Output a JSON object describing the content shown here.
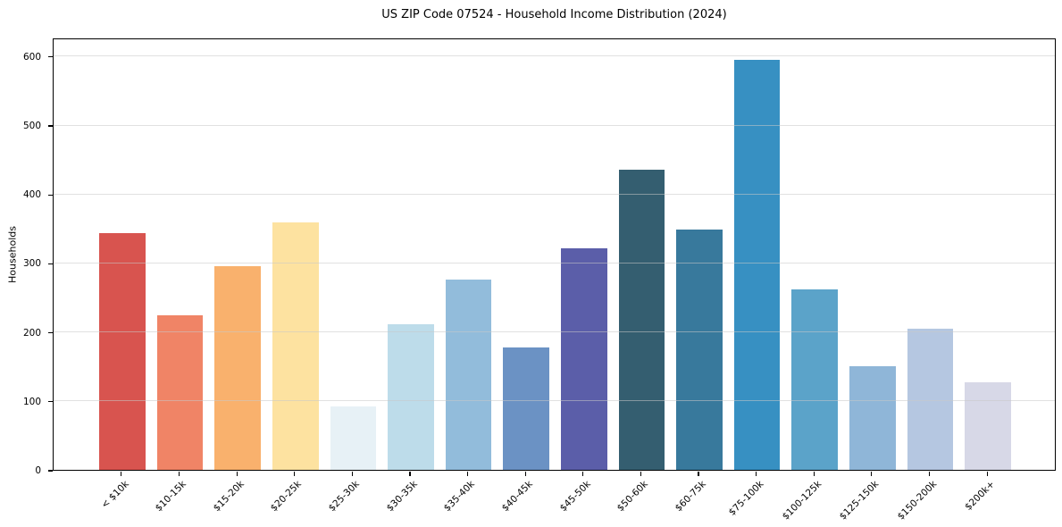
{
  "chart_data": {
    "type": "bar",
    "title": "US ZIP Code 07524 - Household Income Distribution (2024)",
    "xlabel": "",
    "ylabel": "Households",
    "categories": [
      "< $10k",
      "$10-15k",
      "$15-20k",
      "$20-25k",
      "$25-30k",
      "$30-35k",
      "$35-40k",
      "$40-45k",
      "$45-50k",
      "$50-60k",
      "$60-75k",
      "$75-100k",
      "$100-125k",
      "$125-150k",
      "$150-200k",
      "$200k+"
    ],
    "values": [
      343,
      224,
      295,
      359,
      92,
      211,
      276,
      178,
      321,
      435,
      348,
      595,
      262,
      150,
      205,
      127
    ],
    "bar_colors": [
      "#d8544f",
      "#f08466",
      "#f9b16d",
      "#fde2a0",
      "#e7f1f6",
      "#bddcea",
      "#92bcdb",
      "#6b92c4",
      "#5b5ea9",
      "#345e70",
      "#38799c",
      "#3790c2",
      "#5ba3c9",
      "#8fb6d8",
      "#b5c7e1",
      "#d7d8e7"
    ],
    "ylim": [
      0,
      627
    ],
    "yticks": [
      0,
      100,
      200,
      300,
      400,
      500,
      600
    ],
    "grid": "horizontal",
    "legend": "none",
    "spine_color": "#000000",
    "grid_color": "#e3e3e3",
    "background_color": "#ffffff"
  }
}
